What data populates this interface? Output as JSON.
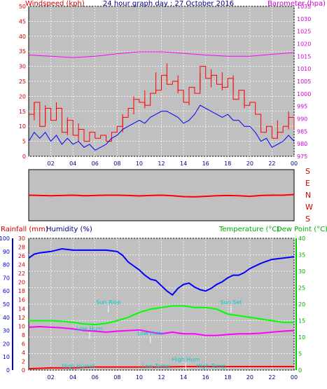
{
  "chart_data": [
    {
      "type": "line",
      "title": "24 hour graph day : 27 October 2016",
      "ylabel": "Windspeed (kph)",
      "y2label": "Barometer (hpa)",
      "ylim": [
        0,
        50
      ],
      "y2lim": [
        975,
        1035
      ],
      "yticks": [
        "0",
        "5",
        "10",
        "15",
        "20",
        "25",
        "30",
        "35",
        "40",
        "45",
        "50"
      ],
      "y2ticks": [
        "975",
        "980",
        "985",
        "990",
        "995",
        "1000",
        "1005",
        "1010",
        "1015",
        "1020",
        "1025",
        "1030",
        "1035"
      ],
      "xlim": [
        0,
        24
      ],
      "xticks": [
        "02",
        "04",
        "06",
        "08",
        "10",
        "12",
        "14",
        "16",
        "18",
        "20",
        "22",
        "00"
      ],
      "grid": true,
      "series": [
        {
          "name": "Windspeed",
          "color": "#ff0000",
          "axis": "y",
          "x": [
            0,
            0.5,
            1,
            1.5,
            2,
            2.5,
            3,
            3.5,
            4,
            4.5,
            5,
            5.5,
            6,
            6.5,
            7,
            7.5,
            8,
            8.5,
            9,
            9.5,
            10,
            10.5,
            11,
            11.5,
            12,
            12.5,
            13,
            13.5,
            14,
            14.5,
            15,
            15.5,
            16,
            16.5,
            17,
            17.5,
            18,
            18.5,
            19,
            19.5,
            20,
            20.5,
            21,
            21.5,
            22,
            22.5,
            23,
            23.5,
            24
          ],
          "values": [
            14,
            18,
            10,
            16,
            12,
            16,
            8,
            12,
            7,
            9,
            5,
            8,
            6,
            7,
            5,
            8,
            10,
            13,
            16,
            19,
            18,
            17,
            21,
            22,
            27,
            24,
            25,
            22,
            18,
            23,
            21,
            30,
            26,
            27,
            24,
            23,
            26,
            19,
            22,
            17,
            18,
            14,
            8,
            10,
            6,
            8,
            10,
            13,
            9
          ]
        },
        {
          "name": "Gust",
          "color": "#ff0000",
          "axis": "y",
          "x": [
            0.5,
            1.5,
            2.5,
            3.5,
            4.5,
            8.5,
            9.5,
            10.5,
            11.5,
            12.5,
            13.5,
            14.5,
            15.5,
            16.5,
            17.5,
            18.5,
            19.5,
            22.5,
            23.5
          ],
          "values": [
            18,
            17,
            18,
            13,
            11,
            14,
            20,
            22,
            28,
            31,
            27,
            23,
            28,
            29,
            28,
            27,
            22,
            12,
            15
          ]
        },
        {
          "name": "Average windspeed",
          "color": "#0000ff",
          "axis": "y",
          "x": [
            0,
            0.5,
            1,
            1.5,
            2,
            2.5,
            3,
            3.5,
            4,
            4.5,
            5,
            5.5,
            6,
            6.5,
            7,
            7.5,
            8,
            8.5,
            9,
            9.5,
            10,
            10.5,
            11,
            11.5,
            12,
            12.5,
            13,
            13.5,
            14,
            14.5,
            15,
            15.5,
            16,
            16.5,
            17,
            17.5,
            18,
            18.5,
            19,
            19.5,
            20,
            20.5,
            21,
            21.5,
            22,
            22.5,
            23,
            23.5,
            24
          ],
          "values": [
            5,
            8,
            6,
            8,
            5,
            7,
            4,
            6,
            4,
            5,
            3,
            4,
            2,
            3,
            4,
            6,
            7,
            9,
            10,
            11,
            12,
            11,
            13,
            14,
            15,
            15,
            14,
            13,
            11,
            12,
            14,
            17,
            16,
            15,
            14,
            13,
            14,
            12,
            12,
            10,
            10,
            8,
            5,
            6,
            3,
            4,
            5,
            7,
            5
          ]
        },
        {
          "name": "Barometer",
          "color": "#ff00ff",
          "axis": "y2",
          "x": [
            0,
            2,
            4,
            6,
            8,
            10,
            12,
            14,
            16,
            18,
            20,
            22,
            24
          ],
          "values": [
            1015.5,
            1015,
            1014.5,
            1015,
            1016,
            1016.8,
            1016.8,
            1016.2,
            1015.5,
            1015,
            1015,
            1015.8,
            1016.5
          ]
        }
      ]
    },
    {
      "type": "line",
      "ylabel": "S E N W S",
      "yticks": [
        "S",
        "E",
        "N",
        "W",
        "S"
      ],
      "ylim": [
        0,
        360
      ],
      "xlim": [
        0,
        24
      ],
      "grid": false,
      "series": [
        {
          "name": "Wind direction",
          "color": "#ff0000",
          "x": [
            0,
            1,
            2,
            3,
            4,
            5,
            6,
            7,
            8,
            9,
            10,
            11,
            12,
            13,
            14,
            15,
            16,
            17,
            18,
            19,
            20,
            21,
            22,
            23,
            24
          ],
          "values": [
            180,
            178,
            176,
            178,
            180,
            176,
            178,
            180,
            180,
            178,
            175,
            178,
            180,
            176,
            170,
            168,
            172,
            176,
            178,
            176,
            172,
            178,
            180,
            180,
            185
          ]
        }
      ]
    },
    {
      "type": "line",
      "ylabel": "Rainfall (mm)",
      "ylabel2": "Humidity (%)",
      "y2label": "Temperature (°C)",
      "y2label2": "Dew Point (°C)",
      "ylim_humidity": [
        0,
        100
      ],
      "ylim_rain": [
        0,
        30
      ],
      "y2lim": [
        0,
        40
      ],
      "yticks_humidity": [
        "0",
        "10",
        "20",
        "30",
        "40",
        "50",
        "60",
        "70",
        "80",
        "90",
        "100"
      ],
      "yticks_rain": [
        "0",
        "2",
        "4",
        "6",
        "8",
        "10",
        "12",
        "14",
        "16",
        "18",
        "20",
        "22",
        "24",
        "26",
        "28",
        "30"
      ],
      "y2ticks": [
        "0",
        "5",
        "10",
        "15",
        "20",
        "25",
        "30",
        "35",
        "40"
      ],
      "xlim": [
        0,
        24
      ],
      "xticks": [
        "02",
        "04",
        "06",
        "08",
        "10",
        "12",
        "14",
        "16",
        "18",
        "20",
        "22",
        "00"
      ],
      "grid": true,
      "annotations": [
        {
          "label": "Sun Rise",
          "x": 7.2,
          "y": 15
        },
        {
          "label": "Sun Set",
          "x": 18.3,
          "y": 15
        },
        {
          "label": "Low Hum",
          "x": 5.5,
          "y": 9
        },
        {
          "label": "Low Hum",
          "x": 11,
          "y": 8
        },
        {
          "label": "High Hum",
          "x": 14.2,
          "y": 2
        },
        {
          "label": "High Humid",
          "x": 4.5,
          "y": 0.5
        },
        {
          "label": "Low Temp",
          "x": 11.5,
          "y": 0.5
        },
        {
          "label": "High Temp",
          "x": 16.5,
          "y": 0.5
        }
      ],
      "series": [
        {
          "name": "Humidity",
          "color": "#0000ff",
          "axis": "humidity",
          "x": [
            0,
            0.5,
            1,
            2,
            3,
            4,
            5,
            6,
            7,
            8,
            8.5,
            9,
            9.5,
            10,
            10.5,
            11,
            11.5,
            12,
            12.5,
            13,
            13.5,
            14,
            14.5,
            15,
            15.5,
            16,
            16.5,
            17,
            17.5,
            18,
            18.5,
            19,
            19.5,
            20,
            21,
            22,
            23,
            24
          ],
          "values": [
            85,
            88,
            89,
            90,
            92,
            91,
            91,
            91,
            91,
            90,
            87,
            82,
            79,
            76,
            72,
            69,
            68,
            64,
            60,
            57,
            62,
            65,
            66,
            63,
            61,
            60,
            62,
            65,
            67,
            70,
            72,
            72,
            74,
            77,
            81,
            84,
            85,
            86
          ]
        },
        {
          "name": "Temperature",
          "color": "#00ff00",
          "axis": "temp",
          "x": [
            0,
            1,
            2,
            3,
            4,
            5,
            6,
            7,
            8,
            9,
            10,
            11,
            12,
            13,
            14,
            15,
            16,
            17,
            18,
            19,
            20,
            21,
            22,
            23,
            24
          ],
          "values": [
            15,
            15,
            15,
            14.8,
            14.5,
            14,
            13.8,
            14.2,
            15,
            16,
            17.5,
            18.5,
            19,
            19.5,
            19.5,
            19,
            19,
            18.5,
            17,
            16.5,
            16,
            15.5,
            15,
            14.5,
            14.5
          ]
        },
        {
          "name": "Dew Point",
          "color": "#ff00ff",
          "axis": "temp",
          "x": [
            0,
            1,
            2,
            3,
            4,
            5,
            6,
            7,
            8,
            9,
            10,
            11,
            12,
            13,
            14,
            15,
            16,
            17,
            18,
            19,
            20,
            21,
            22,
            23,
            24
          ],
          "values": [
            13,
            13.2,
            13,
            12.8,
            12.5,
            12,
            11.8,
            11.5,
            11.8,
            12,
            12.2,
            11.5,
            11,
            11.5,
            11,
            11,
            10.5,
            10.5,
            10.8,
            11,
            11,
            11.2,
            11.5,
            11.8,
            12
          ]
        },
        {
          "name": "Rainfall",
          "color": "#ff0000",
          "axis": "rain",
          "x": [
            0,
            1,
            2,
            3,
            4,
            5,
            6,
            7,
            8,
            10,
            12,
            14,
            16,
            18,
            20,
            22,
            24
          ],
          "values": [
            0.3,
            0.4,
            0.5,
            0.5,
            0.5,
            0.6,
            0.7,
            0.7,
            0.7,
            0.7,
            0.7,
            0.8,
            0.8,
            0.8,
            0.8,
            0.8,
            0.8
          ]
        }
      ]
    }
  ]
}
